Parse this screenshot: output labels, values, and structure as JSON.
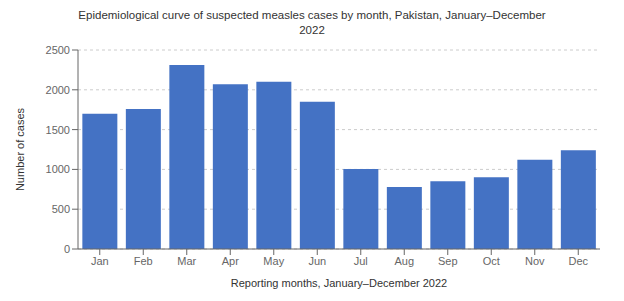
{
  "chart_data": {
    "type": "bar",
    "title": "Epidemiological curve of suspected measles cases by month, Pakistan, January–December\n2022",
    "xlabel": "Reporting months, January–December 2022",
    "ylabel": "Number of cases",
    "categories": [
      "Jan",
      "Feb",
      "Mar",
      "Apr",
      "May",
      "Jun",
      "Jul",
      "Aug",
      "Sep",
      "Oct",
      "Nov",
      "Dec"
    ],
    "values": [
      1700,
      1760,
      2310,
      2070,
      2100,
      1850,
      1005,
      780,
      850,
      900,
      1120,
      1240
    ],
    "color": "#4472C4",
    "ylim": [
      0,
      2500
    ],
    "yticks": [
      0,
      500,
      1000,
      1500,
      2000,
      2500
    ],
    "grid": true
  }
}
